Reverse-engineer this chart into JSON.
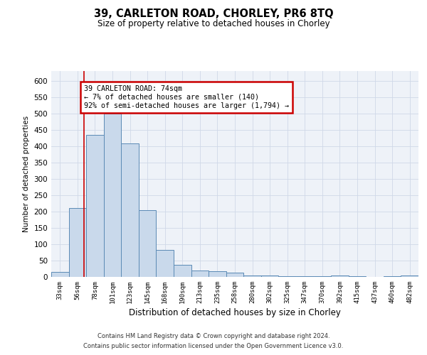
{
  "title": "39, CARLETON ROAD, CHORLEY, PR6 8TQ",
  "subtitle": "Size of property relative to detached houses in Chorley",
  "xlabel": "Distribution of detached houses by size in Chorley",
  "ylabel": "Number of detached properties",
  "categories": [
    "33sqm",
    "56sqm",
    "78sqm",
    "101sqm",
    "123sqm",
    "145sqm",
    "168sqm",
    "190sqm",
    "213sqm",
    "235sqm",
    "258sqm",
    "280sqm",
    "302sqm",
    "325sqm",
    "347sqm",
    "370sqm",
    "392sqm",
    "415sqm",
    "437sqm",
    "460sqm",
    "482sqm"
  ],
  "values": [
    15,
    210,
    435,
    500,
    408,
    205,
    83,
    37,
    20,
    17,
    12,
    5,
    5,
    3,
    3,
    3,
    5,
    3,
    0,
    3,
    5
  ],
  "bar_color": "#c9d9eb",
  "bar_edge_color": "#5b8ab5",
  "grid_color": "#d0d8e8",
  "background_color": "#eef2f8",
  "red_line_x": 1.36,
  "annotation_text": "39 CARLETON ROAD: 74sqm\n← 7% of detached houses are smaller (140)\n92% of semi-detached houses are larger (1,794) →",
  "annotation_box_color": "#ffffff",
  "annotation_box_edge": "#cc0000",
  "ylim": [
    0,
    630
  ],
  "yticks": [
    0,
    50,
    100,
    150,
    200,
    250,
    300,
    350,
    400,
    450,
    500,
    550,
    600
  ],
  "footer_line1": "Contains HM Land Registry data © Crown copyright and database right 2024.",
  "footer_line2": "Contains public sector information licensed under the Open Government Licence v3.0."
}
